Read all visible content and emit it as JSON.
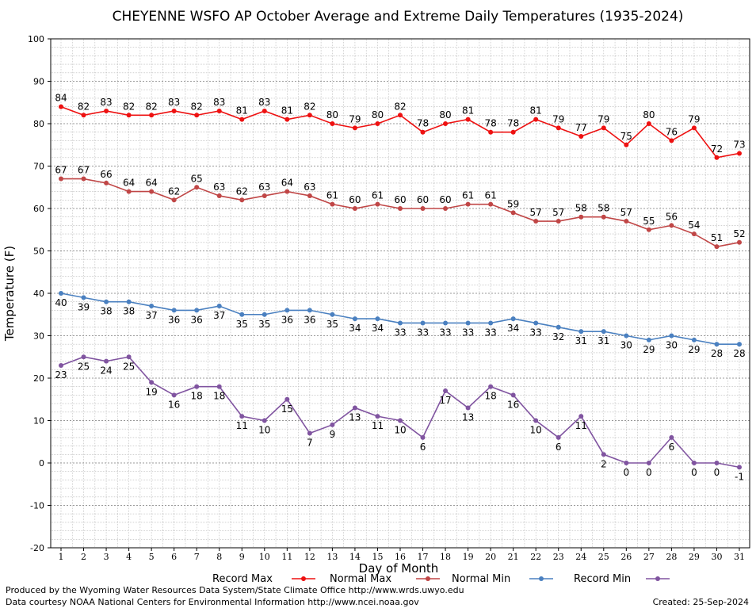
{
  "chart_data": {
    "type": "line",
    "title": "CHEYENNE WSFO AP October Average and Extreme Daily Temperatures (1935-2024)",
    "xlabel": "Day of Month",
    "ylabel": "Temperature (F)",
    "ylim": [
      -20,
      100
    ],
    "yticks": [
      -20,
      -10,
      0,
      10,
      20,
      30,
      40,
      50,
      60,
      70,
      80,
      90,
      100
    ],
    "x": [
      1,
      2,
      3,
      4,
      5,
      6,
      7,
      8,
      9,
      10,
      11,
      12,
      13,
      14,
      15,
      16,
      17,
      18,
      19,
      20,
      21,
      22,
      23,
      24,
      25,
      26,
      27,
      28,
      29,
      30,
      31
    ],
    "grid": true,
    "legend_position": "bottom",
    "series": [
      {
        "name": "Record Max",
        "color": "#ee1111",
        "values": [
          84,
          82,
          83,
          82,
          82,
          83,
          82,
          83,
          81,
          83,
          81,
          82,
          80,
          79,
          80,
          82,
          78,
          80,
          81,
          78,
          78,
          81,
          79,
          77,
          79,
          75,
          80,
          76,
          79,
          72,
          73
        ]
      },
      {
        "name": "Normal Max",
        "color": "#c04646",
        "values": [
          67,
          67,
          66,
          64,
          64,
          62,
          65,
          63,
          62,
          63,
          64,
          63,
          61,
          60,
          61,
          60,
          60,
          60,
          61,
          61,
          59,
          57,
          57,
          58,
          58,
          57,
          55,
          56,
          54,
          51,
          52
        ]
      },
      {
        "name": "Normal Min",
        "color": "#4a80c0",
        "values": [
          40,
          39,
          38,
          38,
          37,
          36,
          36,
          37,
          35,
          35,
          36,
          36,
          35,
          34,
          34,
          33,
          33,
          33,
          33,
          33,
          34,
          33,
          32,
          31,
          31,
          30,
          29,
          30,
          29,
          28,
          28
        ]
      },
      {
        "name": "Record Min",
        "color": "#8054a0",
        "values": [
          23,
          25,
          24,
          25,
          19,
          16,
          18,
          18,
          11,
          10,
          15,
          7,
          9,
          13,
          11,
          10,
          6,
          17,
          13,
          18,
          16,
          10,
          6,
          11,
          2,
          0,
          0,
          6,
          0,
          0,
          -1
        ]
      }
    ]
  },
  "footer": {
    "produced_by": "Produced by the Wyoming Water Resources Data System/State Climate Office http://www.wrds.uwyo.edu",
    "courtesy": "Data courtesy NOAA National Centers for Environmental Information http://www.ncei.noaa.gov",
    "created": "Created:  25-Sep-2024"
  }
}
